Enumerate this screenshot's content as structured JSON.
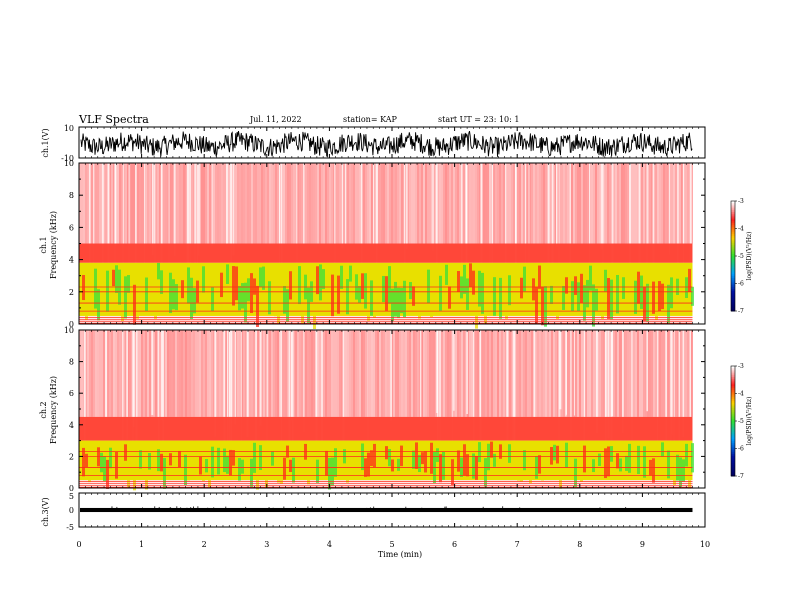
{
  "header": {
    "title": "VLF Spectra",
    "date": "Jul. 11, 2022",
    "station": "station= KAP",
    "start_ut": "start UT = 23: 10: 1"
  },
  "chart_data": [
    {
      "type": "line",
      "name": "ch1-waveform",
      "ylabel": "ch.1(V)",
      "ylim": [
        -10,
        10
      ],
      "yticks": [
        "10",
        "-10"
      ],
      "xlim": [
        0,
        10
      ],
      "data_extent_min": 9.8,
      "trace": "noise, amplitude approx -9 to +9 V, mean ~ -1"
    },
    {
      "type": "heatmap",
      "name": "ch1-spectrogram",
      "ylabel": "ch.1\nFrequency (kHz)",
      "ylabel_line1": "ch.1",
      "ylabel_line2": "Frequency (kHz)",
      "ylim": [
        0,
        10
      ],
      "yticks": [
        "0",
        "2",
        "4",
        "6",
        "8",
        "10"
      ],
      "xlim": [
        0,
        10
      ],
      "bands_khz": [
        {
          "from": 0,
          "to": 0.5,
          "level": "red-hatched"
        },
        {
          "from": 0.5,
          "to": 3.8,
          "level": "yellow-green"
        },
        {
          "from": 3.8,
          "to": 5.0,
          "level": "red"
        },
        {
          "from": 5.0,
          "to": 10,
          "level": "light-red-speckle"
        }
      ],
      "colorbar": {
        "label": "log(PSD)(V²/Hz)",
        "ticks": [
          "-3",
          "-4",
          "-5",
          "-6",
          "-7"
        ],
        "range": [
          -7,
          -3
        ]
      }
    },
    {
      "type": "heatmap",
      "name": "ch2-spectrogram",
      "ylabel_line1": "ch.2",
      "ylabel_line2": "Frequency (kHz)",
      "ylim": [
        0,
        10
      ],
      "yticks": [
        "0",
        "2",
        "4",
        "6",
        "8",
        "10"
      ],
      "xlim": [
        0,
        10
      ],
      "bands_khz": [
        {
          "from": 0,
          "to": 0.5,
          "level": "red-hatched"
        },
        {
          "from": 0.5,
          "to": 3.0,
          "level": "yellow-green"
        },
        {
          "from": 3.0,
          "to": 4.5,
          "level": "red"
        },
        {
          "from": 4.5,
          "to": 10,
          "level": "light-red-speckle"
        }
      ],
      "colorbar": {
        "label": "log(PSD)(V²/Hz)",
        "ticks": [
          "-3",
          "-4",
          "-5",
          "-6",
          "-7"
        ],
        "range": [
          -7,
          -3
        ]
      }
    },
    {
      "type": "line",
      "name": "ch3-waveform",
      "ylabel": "ch.3(V)",
      "ylim": [
        -5,
        5
      ],
      "yticks": [
        "5",
        "0",
        "-5"
      ],
      "xlim": [
        0,
        10
      ],
      "trace": "dense band near 0 V, amplitude approx +/-0.6 V"
    }
  ],
  "xaxis": {
    "label": "Time (min)",
    "ticks": [
      "0",
      "1",
      "2",
      "3",
      "4",
      "5",
      "6",
      "7",
      "8",
      "9",
      "10"
    ]
  },
  "colors": {
    "trace": "#000000",
    "speckle": "#ff3030",
    "band_red": "#ff2a1a",
    "band_yellow": "#e8e000",
    "band_green": "#39e03a",
    "axis": "#000000"
  }
}
